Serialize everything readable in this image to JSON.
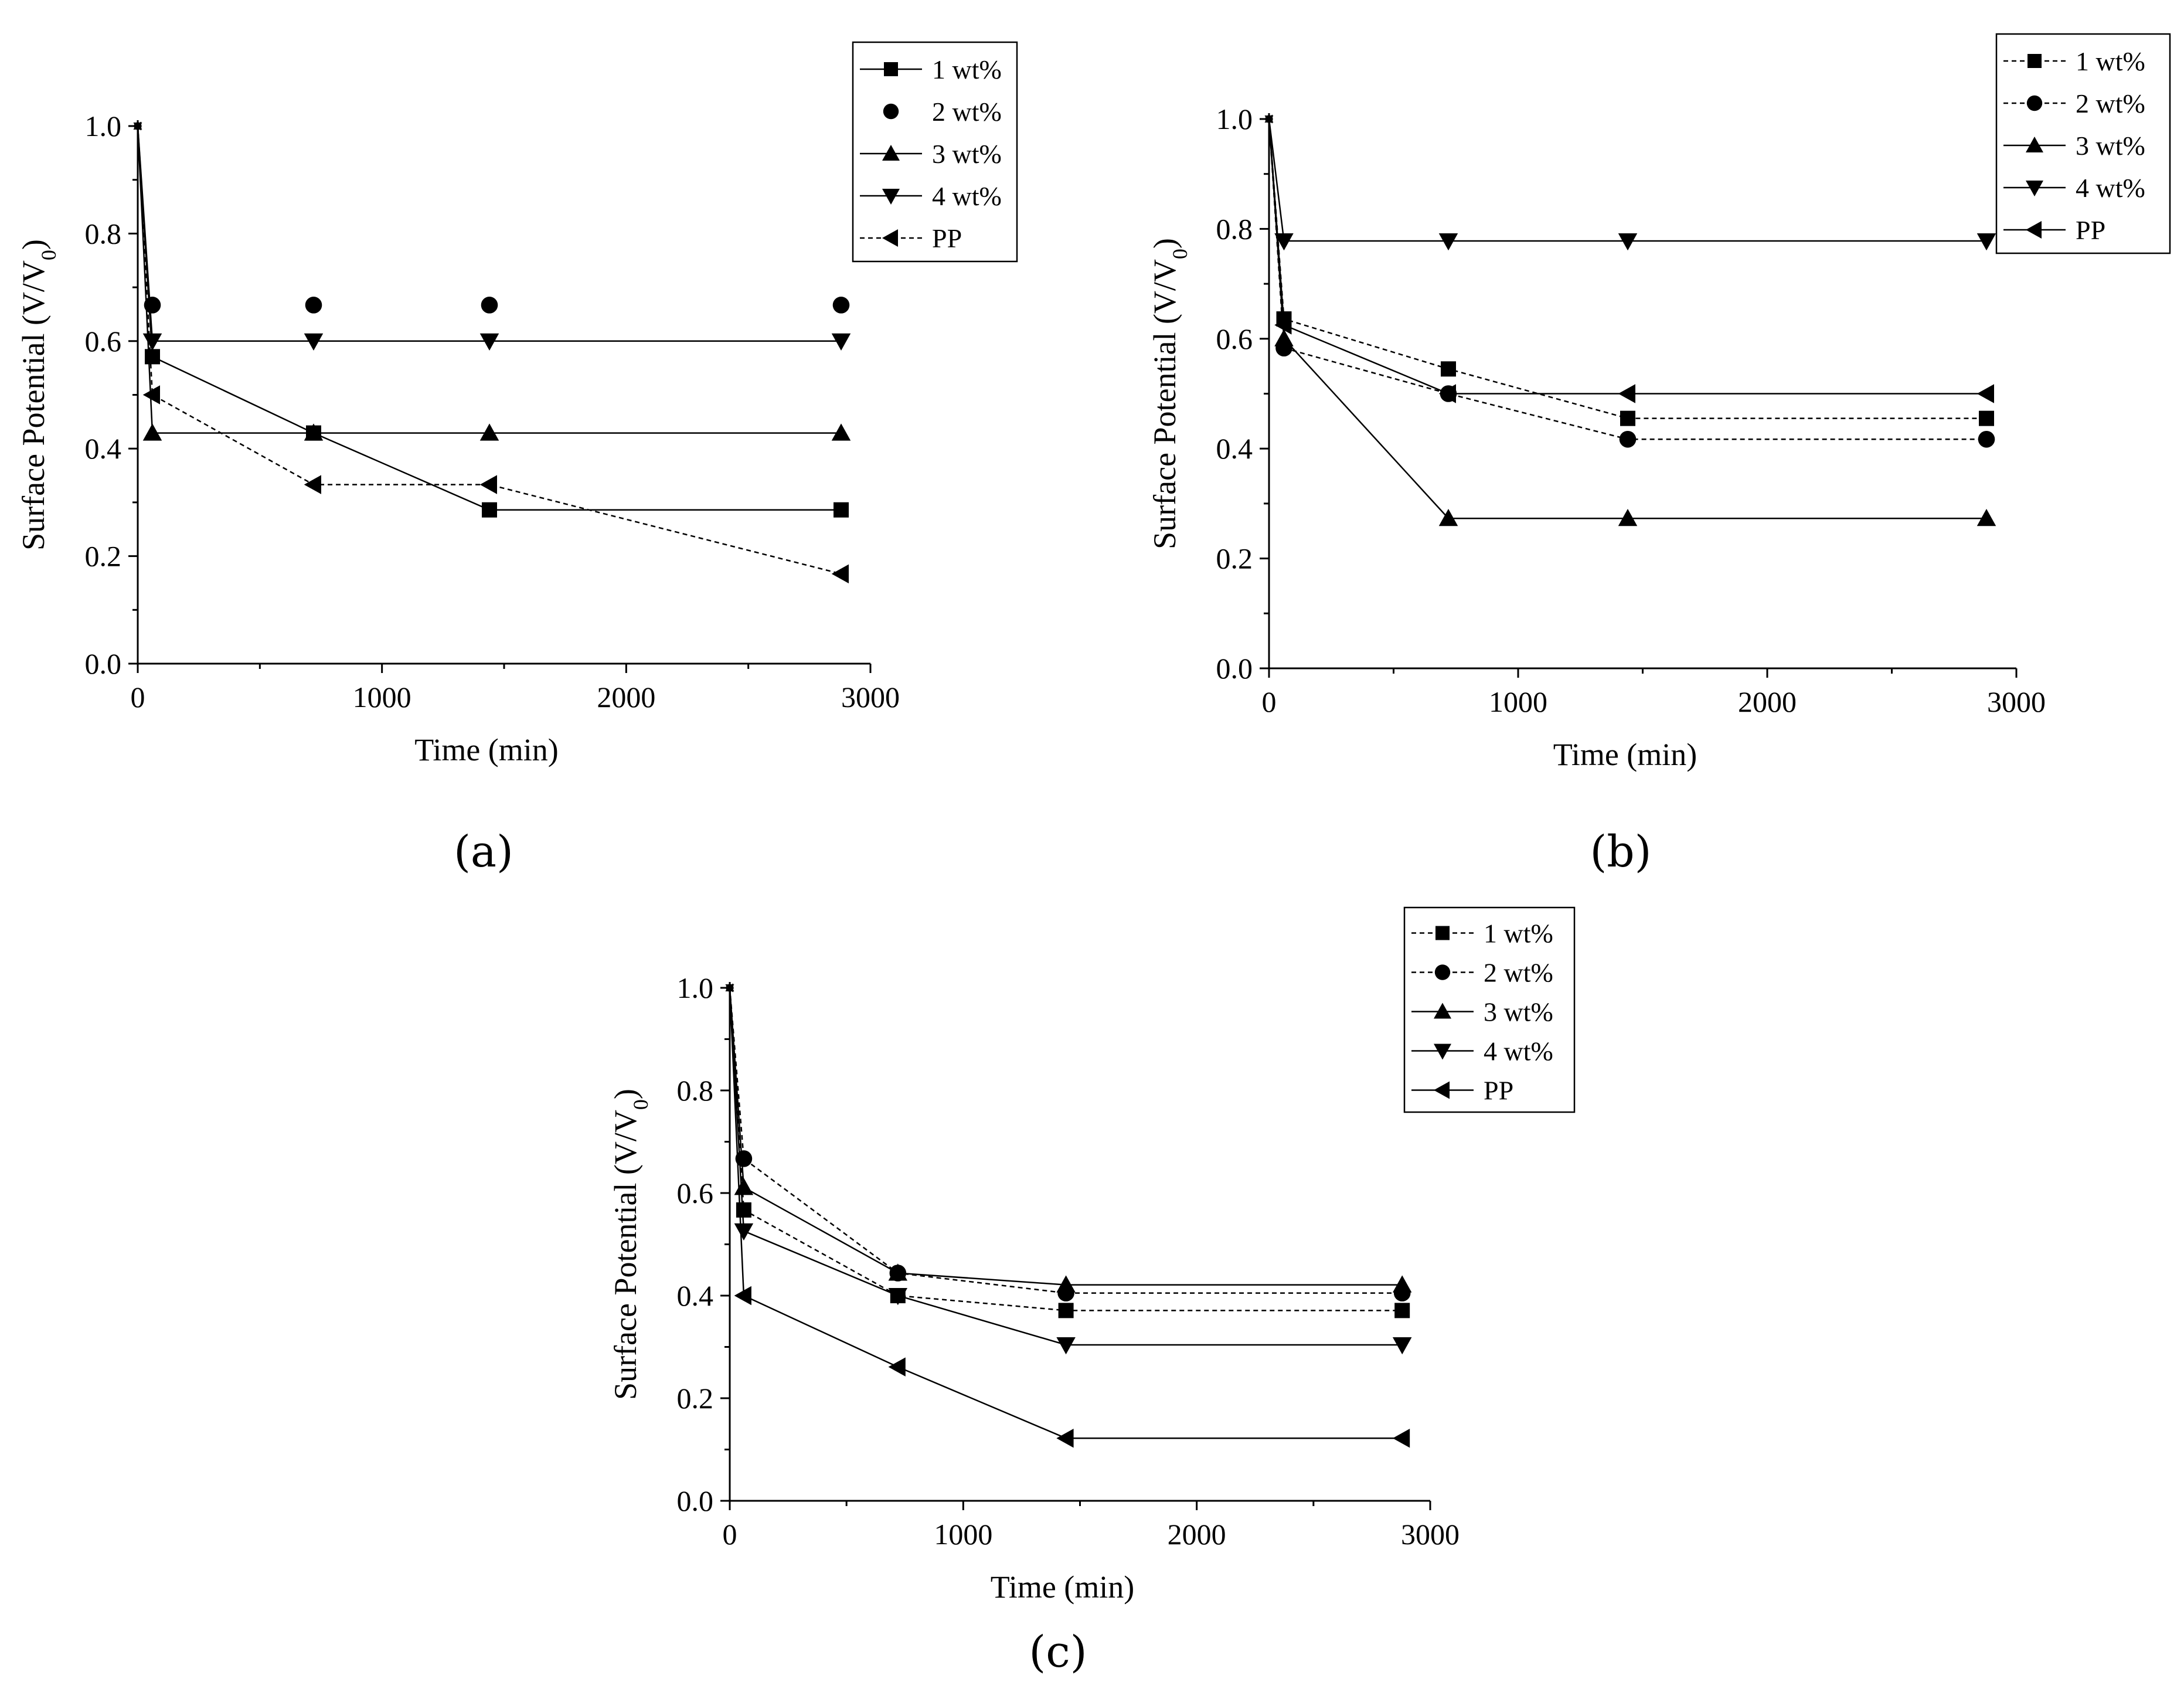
{
  "figure": {
    "panel_labels": [
      "(a)",
      "(b)",
      "(c)"
    ]
  },
  "chart_data": [
    {
      "type": "line",
      "panel": "a",
      "title": "",
      "xlabel": "Time (min)",
      "ylabel": "Surface Potential (V/V",
      "ylabel_subscript": "0",
      "xlim": [
        0,
        3000
      ],
      "ylim": [
        0,
        1.0
      ],
      "xticks": [
        0,
        1000,
        2000,
        3000
      ],
      "yticks": [
        0.0,
        0.2,
        0.4,
        0.6,
        0.8,
        1.0
      ],
      "xtick_labels": [
        "0",
        "1000",
        "2000",
        "3000"
      ],
      "ytick_labels": [
        "0.0",
        "0.2",
        "0.4",
        "0.6",
        "0.8",
        "1.0"
      ],
      "legend_position": "top-right",
      "series": [
        {
          "name": "1 wt%",
          "marker": "square",
          "line": true,
          "dash": "",
          "x": [
            0,
            60,
            720,
            1440,
            2880
          ],
          "y": [
            1.0,
            0.571,
            0.429,
            0.286,
            0.286
          ]
        },
        {
          "name": "2 wt%",
          "marker": "circle",
          "line": false,
          "dash": "",
          "x": [
            0,
            60,
            720,
            1440,
            2880
          ],
          "y": [
            1.0,
            0.667,
            0.667,
            0.667,
            0.667
          ]
        },
        {
          "name": "3 wt%",
          "marker": "triangle-up",
          "line": true,
          "dash": "",
          "x": [
            0,
            60,
            720,
            1440,
            2880
          ],
          "y": [
            1.0,
            0.429,
            0.429,
            0.429,
            0.429
          ]
        },
        {
          "name": "4 wt%",
          "marker": "triangle-down",
          "line": true,
          "dash": "",
          "x": [
            0,
            60,
            720,
            1440,
            2880
          ],
          "y": [
            1.0,
            0.6,
            0.6,
            0.6,
            0.6
          ]
        },
        {
          "name": "PP",
          "marker": "triangle-left",
          "line": true,
          "dash": "8,6",
          "x": [
            0,
            60,
            720,
            1440,
            2880
          ],
          "y": [
            1.0,
            0.5,
            0.333,
            0.333,
            0.167
          ]
        }
      ]
    },
    {
      "type": "line",
      "panel": "b",
      "title": "",
      "xlabel": "Time (min)",
      "ylabel": "Surface Potential (V/V",
      "ylabel_subscript": "0",
      "xlim": [
        0,
        3000
      ],
      "ylim": [
        0,
        1.0
      ],
      "xticks": [
        0,
        1000,
        2000,
        3000
      ],
      "yticks": [
        0.0,
        0.2,
        0.4,
        0.6,
        0.8,
        1.0
      ],
      "xtick_labels": [
        "0",
        "1000",
        "2000",
        "3000"
      ],
      "ytick_labels": [
        "0.0",
        "0.2",
        "0.4",
        "0.6",
        "0.8",
        "1.0"
      ],
      "legend_position": "top-right",
      "series": [
        {
          "name": "1 wt%",
          "marker": "square",
          "line": true,
          "dash": "8,6",
          "x": [
            0,
            60,
            720,
            1440,
            2880
          ],
          "y": [
            1.0,
            0.636,
            0.545,
            0.455,
            0.455
          ]
        },
        {
          "name": "2 wt%",
          "marker": "circle",
          "line": true,
          "dash": "8,6",
          "x": [
            0,
            60,
            720,
            1440,
            2880
          ],
          "y": [
            1.0,
            0.583,
            0.5,
            0.417,
            0.417
          ]
        },
        {
          "name": "3 wt%",
          "marker": "triangle-up",
          "line": true,
          "dash": "",
          "x": [
            0,
            60,
            720,
            1440,
            2880
          ],
          "y": [
            1.0,
            0.6,
            0.273,
            0.273,
            0.273
          ]
        },
        {
          "name": "4 wt%",
          "marker": "triangle-down",
          "line": true,
          "dash": "",
          "x": [
            0,
            60,
            720,
            1440,
            2880
          ],
          "y": [
            1.0,
            0.778,
            0.778,
            0.778,
            0.778
          ]
        },
        {
          "name": "PP",
          "marker": "triangle-left",
          "line": true,
          "dash": "",
          "x": [
            0,
            60,
            720,
            1440,
            2880
          ],
          "y": [
            1.0,
            0.625,
            0.5,
            0.5,
            0.5
          ]
        }
      ]
    },
    {
      "type": "line",
      "panel": "c",
      "title": "",
      "xlabel": "Time (min)",
      "ylabel": "Surface Potential (V/V",
      "ylabel_subscript": "0",
      "xlim": [
        0,
        3000
      ],
      "ylim": [
        0,
        1.0
      ],
      "xticks": [
        0,
        1000,
        2000,
        3000
      ],
      "yticks": [
        0.0,
        0.2,
        0.4,
        0.6,
        0.8,
        1.0
      ],
      "xtick_labels": [
        "0",
        "1000",
        "2000",
        "3000"
      ],
      "ytick_labels": [
        "0.0",
        "0.2",
        "0.4",
        "0.6",
        "0.8",
        "1.0"
      ],
      "legend_position": "top-right",
      "series": [
        {
          "name": "1 wt%",
          "marker": "square",
          "line": true,
          "dash": "8,6",
          "x": [
            0,
            60,
            720,
            1440,
            2880
          ],
          "y": [
            1.0,
            0.567,
            0.4,
            0.371,
            0.371
          ]
        },
        {
          "name": "2 wt%",
          "marker": "circle",
          "line": true,
          "dash": "8,6",
          "x": [
            0,
            60,
            720,
            1440,
            2880
          ],
          "y": [
            1.0,
            0.667,
            0.444,
            0.405,
            0.405
          ]
        },
        {
          "name": "3 wt%",
          "marker": "triangle-up",
          "line": true,
          "dash": "",
          "x": [
            0,
            60,
            720,
            1440,
            2880
          ],
          "y": [
            1.0,
            0.611,
            0.444,
            0.421,
            0.421
          ]
        },
        {
          "name": "4 wt%",
          "marker": "triangle-down",
          "line": true,
          "dash": "",
          "x": [
            0,
            60,
            720,
            1440,
            2880
          ],
          "y": [
            1.0,
            0.526,
            0.4,
            0.304,
            0.304
          ]
        },
        {
          "name": "PP",
          "marker": "triangle-left",
          "line": true,
          "dash": "",
          "x": [
            0,
            60,
            720,
            1440,
            2880
          ],
          "y": [
            1.0,
            0.4,
            0.261,
            0.122,
            0.122
          ]
        }
      ]
    }
  ]
}
